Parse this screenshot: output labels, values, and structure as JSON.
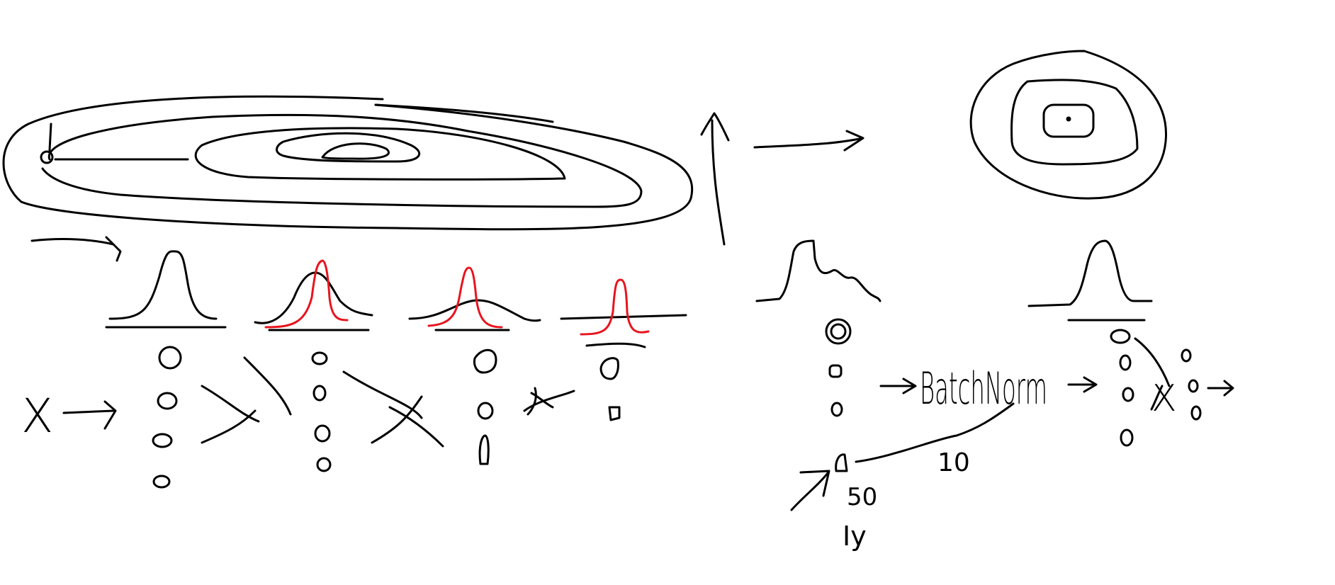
{
  "labels": {
    "x_left": "X",
    "batchnorm_main": "BatchNorm",
    "ten": "10",
    "fifty": "50",
    "y_label": "Iy",
    "x_right": "X",
    "batchnorm_small": "BatchNor"
  },
  "colors": {
    "ink": "#000000",
    "red_ink": "#e8141e",
    "background": "#ffffff"
  }
}
